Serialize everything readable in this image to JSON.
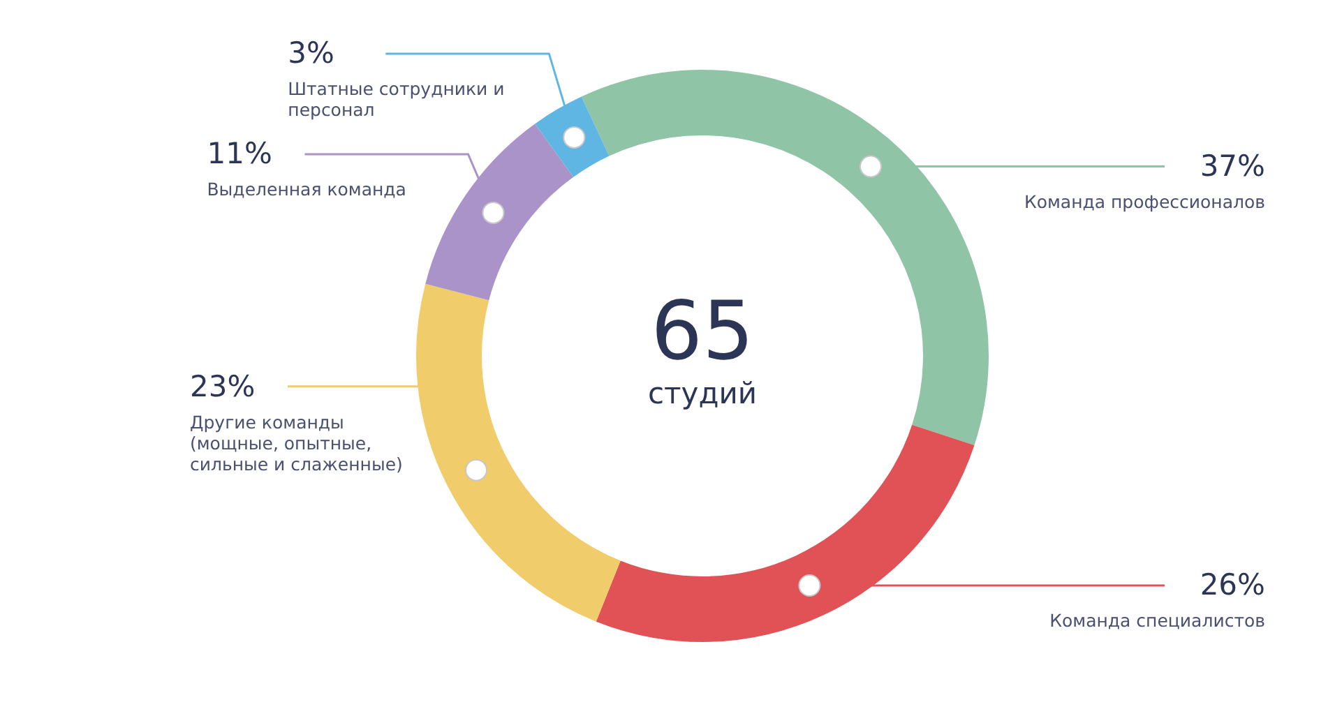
{
  "chart_data": {
    "type": "donut",
    "categories": [
      "Команда профессионалов",
      "Команда специалистов",
      "Другие команды (мощные, опытные, сильные и слаженные)",
      "Выделенная команда",
      "Штатные сотрудники и персонал"
    ],
    "values": [
      37,
      26,
      23,
      11,
      3
    ],
    "colors": [
      "#8fc4a7",
      "#e05256",
      "#f0cc6b",
      "#aa93c8",
      "#5fb6e3"
    ],
    "value_labels": [
      "37%",
      "26%",
      "23%",
      "11%",
      "3%"
    ],
    "annotations": [
      "65",
      "студий"
    ],
    "legend": false
  }
}
